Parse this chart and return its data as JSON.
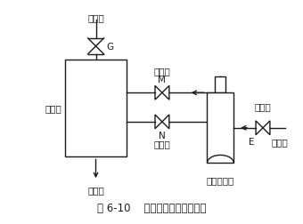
{
  "title": "图 6-10    负压冷剂水排出示意图",
  "background_color": "#ffffff",
  "labels": {
    "chouqi_shi": "抽气室",
    "G": "G",
    "zuyouqi": "阻油器",
    "zhenkong_beng": "真空泵",
    "fuzhu_fa": "辅助阀",
    "M": "M",
    "chouqi_fa": "抽气阀",
    "N": "N",
    "quyang_fa": "取样阀",
    "E": "E",
    "lengjibeng": "冷剂泵",
    "zhenkong_ping": "真空玻璃瓶"
  }
}
